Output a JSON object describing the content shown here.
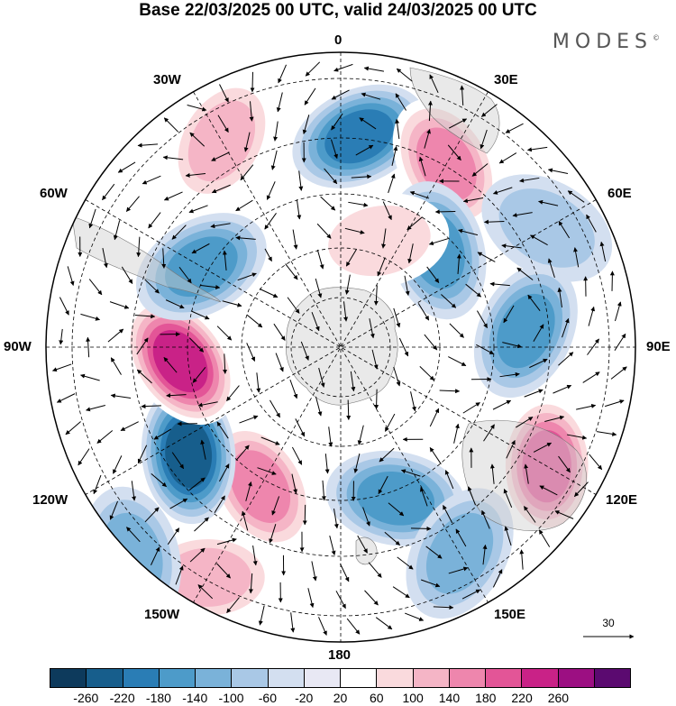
{
  "title": "Base 22/03/2025 00 UTC, valid 24/03/2025 00 UTC",
  "brand": "MODES",
  "brand_mark": "©",
  "longitude_labels": {
    "lon_0": "0",
    "lon_30e": "30E",
    "lon_60e": "60E",
    "lon_90e": "90E",
    "lon_120e": "120E",
    "lon_150e": "150E",
    "lon_180": "180",
    "lon_150w": "150W",
    "lon_120w": "120W",
    "lon_90w": "90W",
    "lon_60w": "60W",
    "lon_30w": "30W"
  },
  "reference_vector_label": "30",
  "colorbar": {
    "colors": [
      "#0d3a5c",
      "#175e8c",
      "#2a7db5",
      "#4d9bc9",
      "#7ab2d9",
      "#a9c8e6",
      "#d3dff0",
      "#e8e8f4",
      "#ffffff",
      "#fadadd",
      "#f5b5c6",
      "#ee86ad",
      "#e35597",
      "#c92287",
      "#9c0f82",
      "#5b0a70"
    ],
    "tick_labels": [
      "-260",
      "-220",
      "-180",
      "-140",
      "-100",
      "-60",
      "-20",
      "20",
      "60",
      "100",
      "140",
      "180",
      "220",
      "260"
    ]
  },
  "map_data": {
    "projection": "polar stereographic, south pole centred",
    "anomalies": [
      {
        "lon": 5,
        "lat": -45,
        "value": -200
      },
      {
        "lon": 30,
        "lat": -45,
        "value": 160
      },
      {
        "lon": 60,
        "lat": -40,
        "value": -60
      },
      {
        "lon": 45,
        "lat": -60,
        "value": -160
      },
      {
        "lon": 20,
        "lat": -65,
        "value": 80
      },
      {
        "lon": 85,
        "lat": -50,
        "value": -140
      },
      {
        "lon": 120,
        "lat": -40,
        "value": 180
      },
      {
        "lon": 160,
        "lat": -55,
        "value": -140
      },
      {
        "lon": 150,
        "lat": -40,
        "value": -120
      },
      {
        "lon": -150,
        "lat": -55,
        "value": 160
      },
      {
        "lon": -150,
        "lat": -35,
        "value": 120
      },
      {
        "lon": -125,
        "lat": -50,
        "value": -240
      },
      {
        "lon": -95,
        "lat": -55,
        "value": 220
      },
      {
        "lon": -60,
        "lat": -55,
        "value": -140
      },
      {
        "lon": -30,
        "lat": -40,
        "value": 100
      },
      {
        "lon": -135,
        "lat": -30,
        "value": -100
      }
    ]
  }
}
